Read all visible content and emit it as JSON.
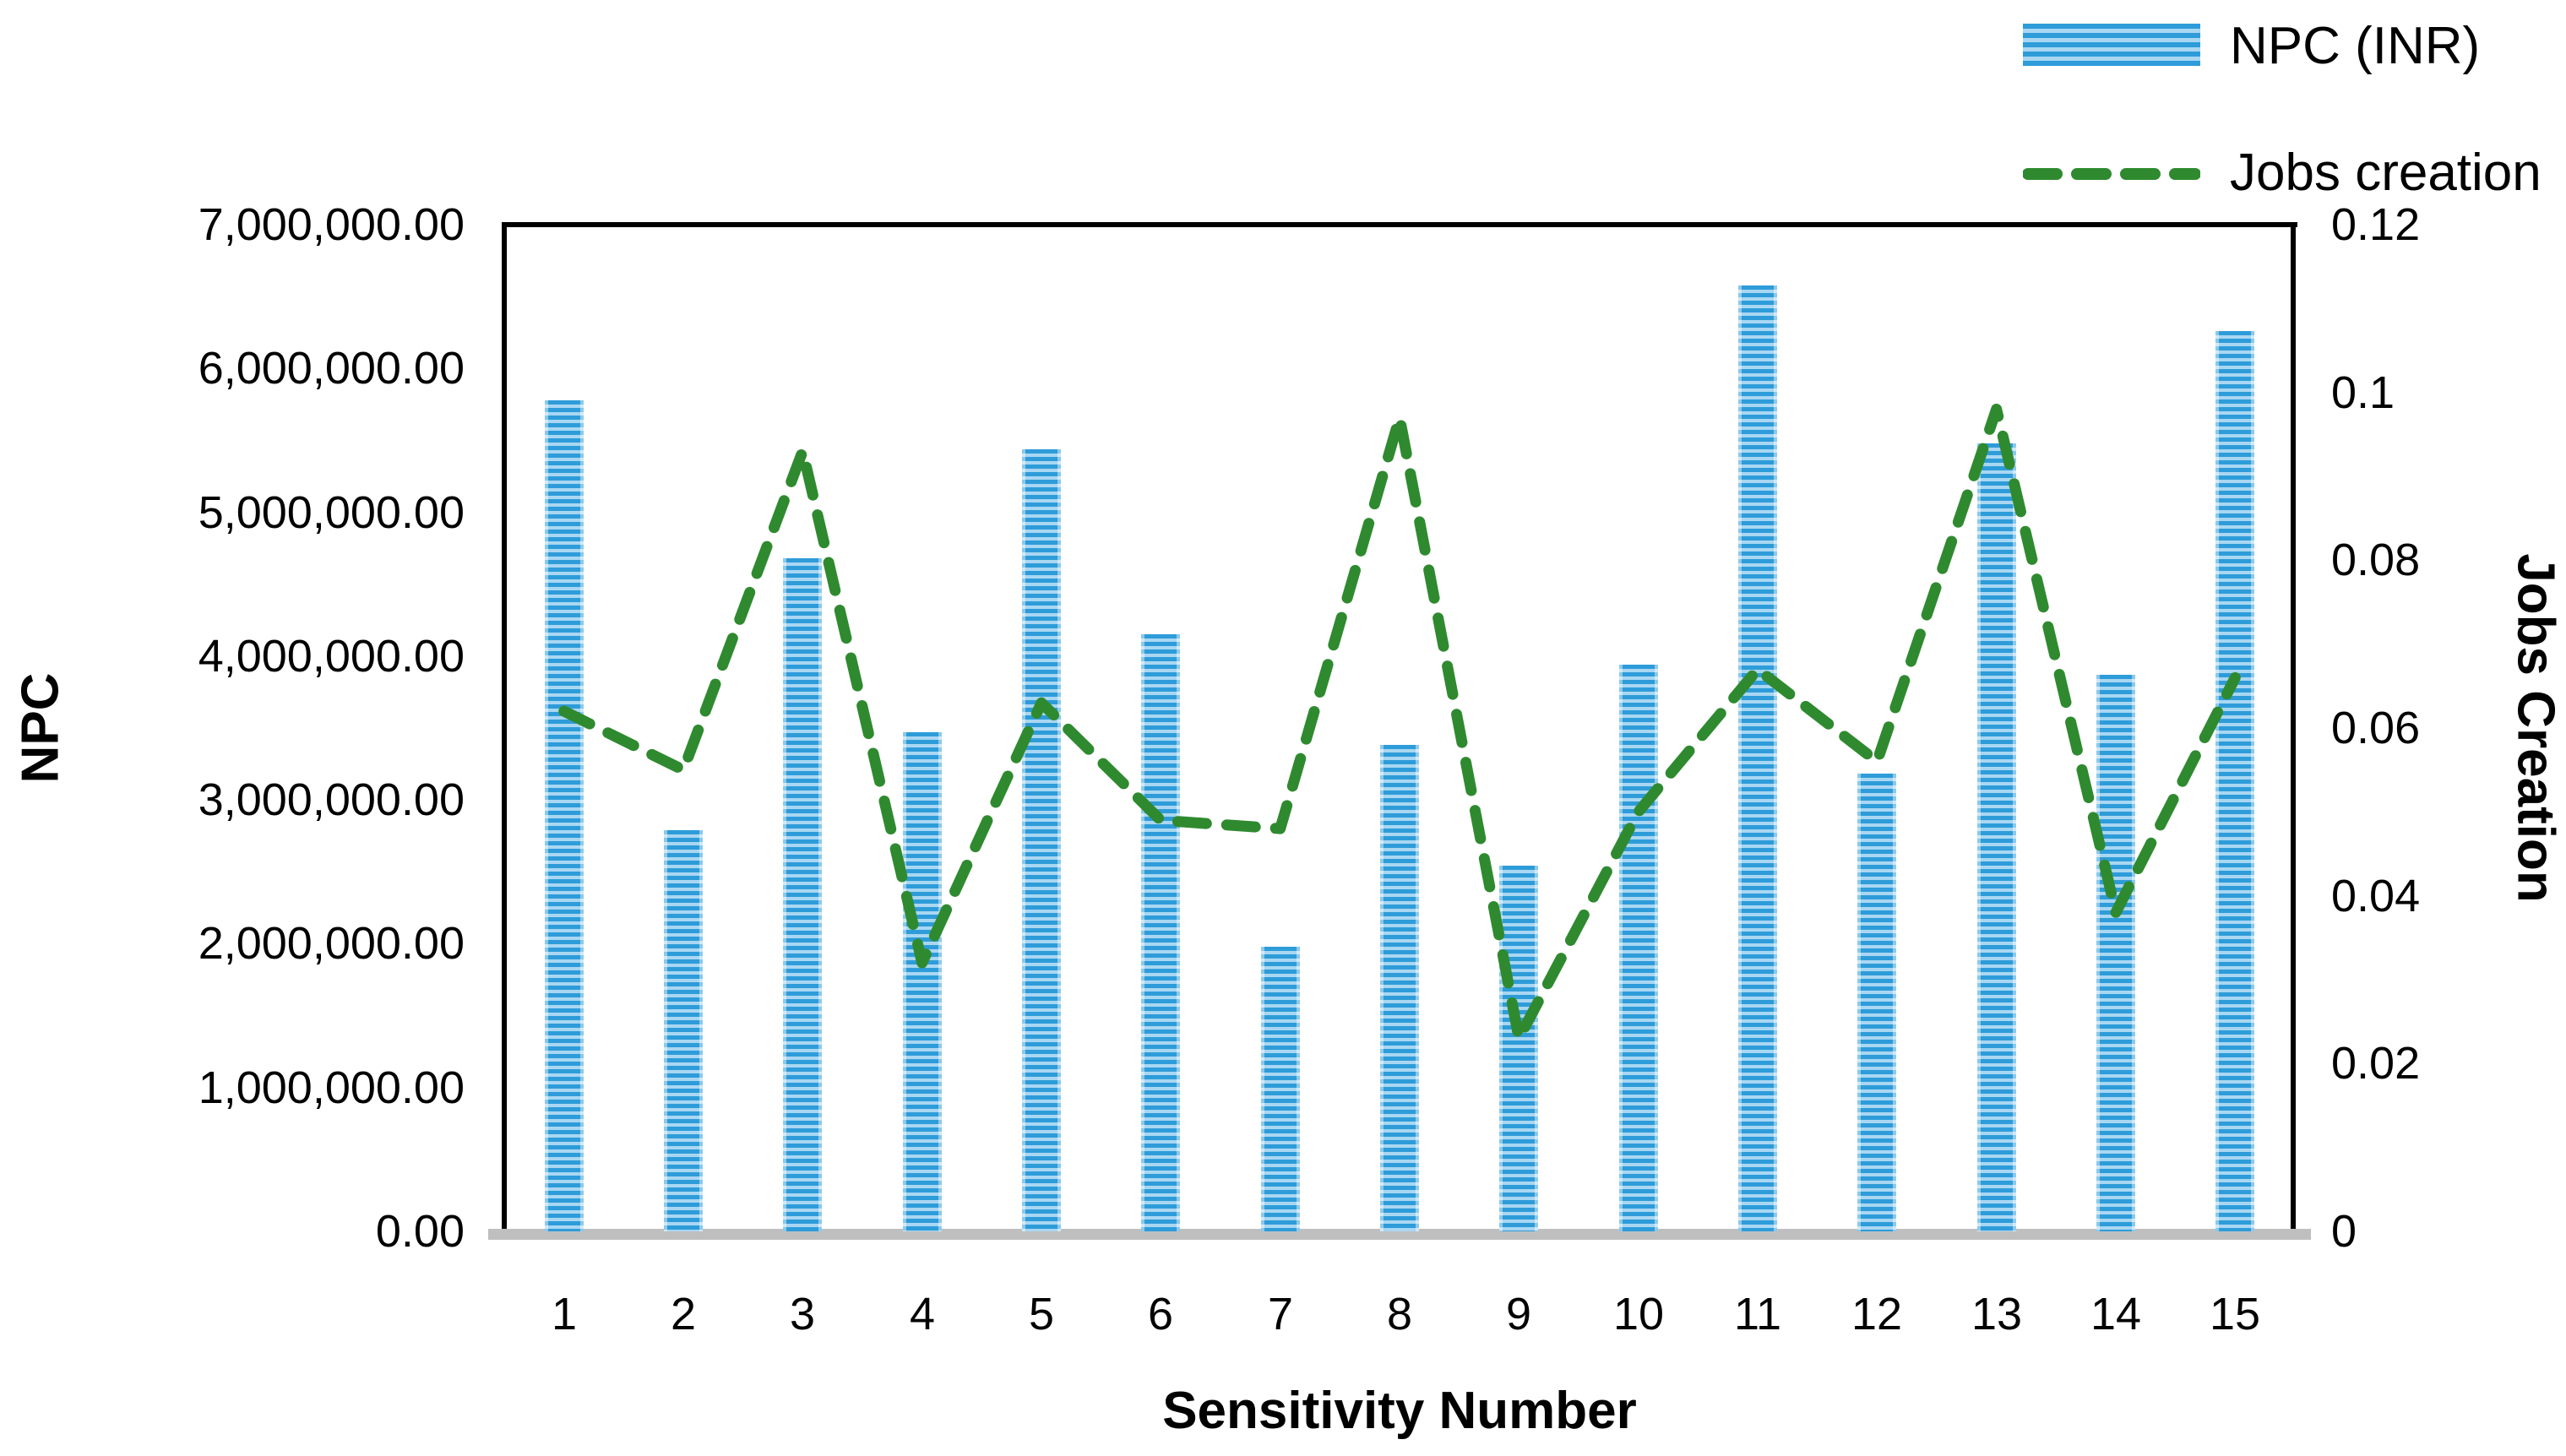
{
  "legend": {
    "items": [
      {
        "label": "NPC (INR)",
        "swatch": "striped-bar-swatch"
      },
      {
        "label": "Jobs creation",
        "swatch": "dashed-line-swatch"
      }
    ]
  },
  "y_left": {
    "title": "NPC",
    "ticks": [
      "7,000,000.00",
      "6,000,000.00",
      "5,000,000.00",
      "4,000,000.00",
      "3,000,000.00",
      "2,000,000.00",
      "1,000,000.00",
      "0.00"
    ]
  },
  "y_right": {
    "title": "Jobs Creation",
    "ticks": [
      "0.12",
      "0.1",
      "0.08",
      "0.06",
      "0.04",
      "0.02",
      "0"
    ]
  },
  "x_axis": {
    "title": "Sensitivity Number",
    "labels": [
      "1",
      "2",
      "3",
      "4",
      "5",
      "6",
      "7",
      "8",
      "9",
      "10",
      "11",
      "12",
      "13",
      "14",
      "15"
    ]
  },
  "colors": {
    "bar_dark": "#2e9cd9",
    "bar_light": "#a9d7f2",
    "line_green": "#2f8a2f",
    "baseline_gray": "#bfbfbf",
    "axis_black": "#000000"
  },
  "chart_data": {
    "type": "bar+line",
    "title": "",
    "xlabel": "Sensitivity Number",
    "categories": [
      1,
      2,
      3,
      4,
      5,
      6,
      7,
      8,
      9,
      10,
      11,
      12,
      13,
      14,
      15
    ],
    "series": [
      {
        "name": "NPC (INR)",
        "type": "bar",
        "axis": "left",
        "ylabel": "NPC",
        "ylim": [
          0,
          7000000
        ],
        "values": [
          5780000,
          2790000,
          4680000,
          3470000,
          5440000,
          4150000,
          1980000,
          3380000,
          2540000,
          3940000,
          6580000,
          3180000,
          5480000,
          3870000,
          6260000
        ]
      },
      {
        "name": "Jobs creation",
        "type": "line",
        "dashed": true,
        "axis": "right",
        "ylabel": "Jobs Creation",
        "ylim": [
          0,
          0.12
        ],
        "values": [
          0.062,
          0.055,
          0.093,
          0.032,
          0.063,
          0.049,
          0.048,
          0.097,
          0.023,
          0.05,
          0.067,
          0.056,
          0.098,
          0.038,
          0.066
        ]
      }
    ],
    "grid": false,
    "legend_position": "top-right"
  }
}
